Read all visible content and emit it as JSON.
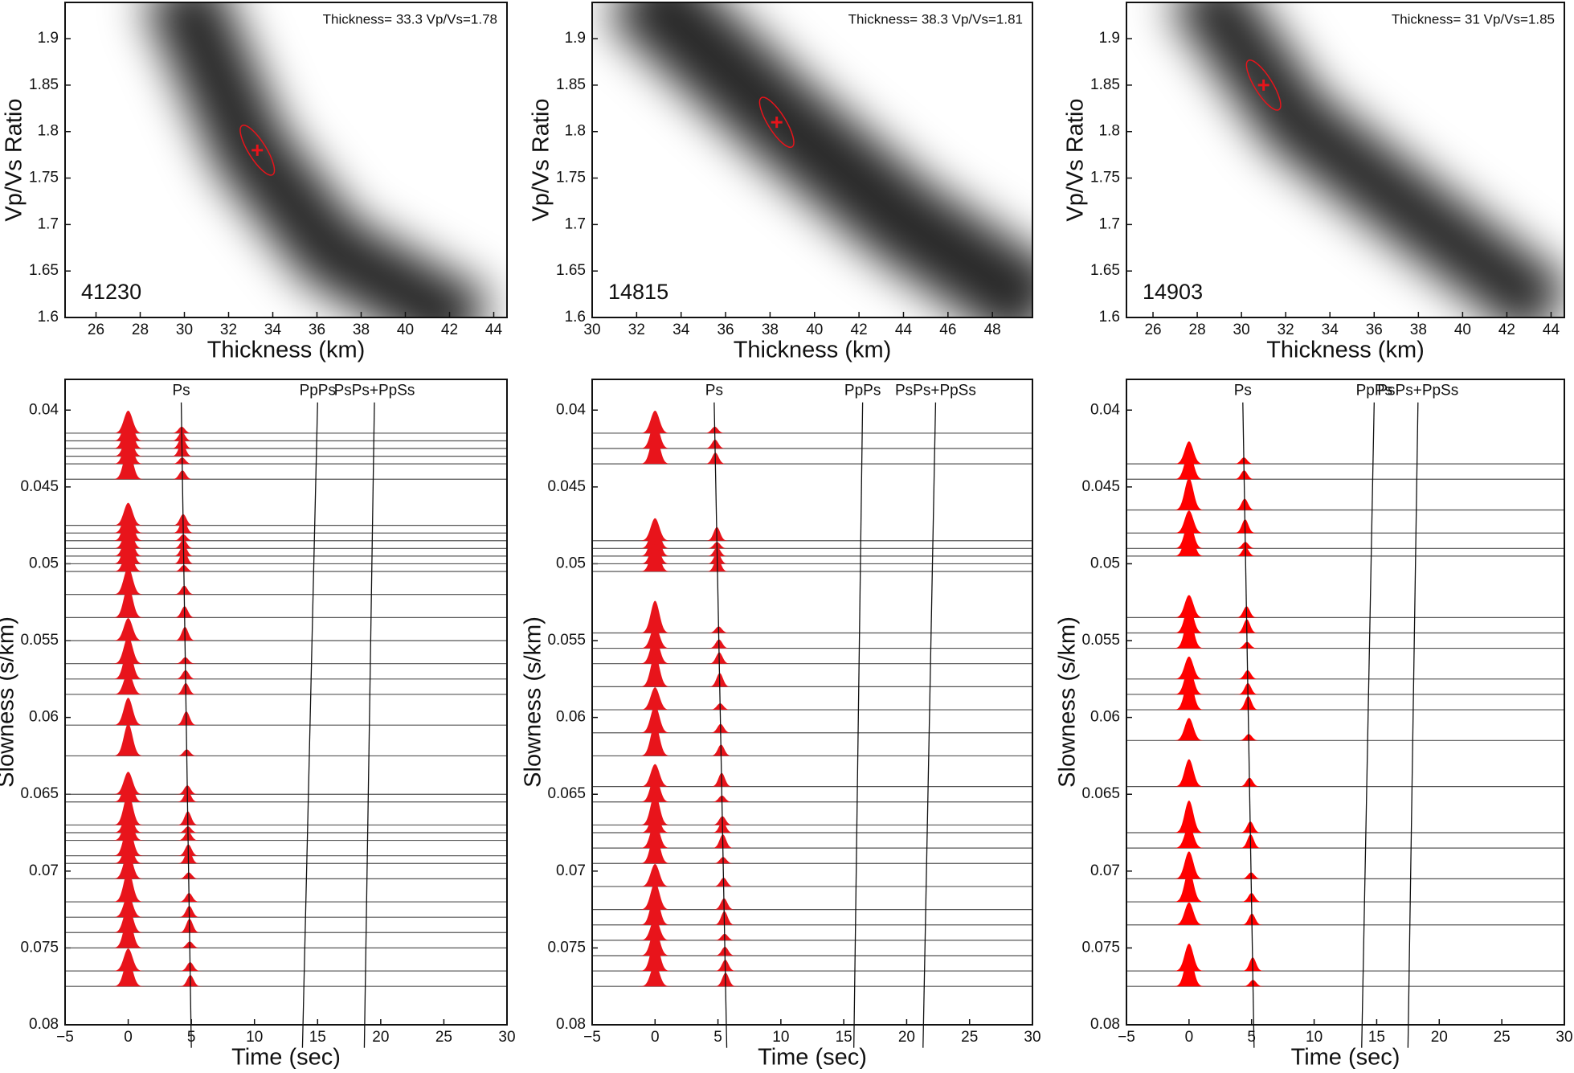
{
  "chart_data": [
    {
      "type": "scatter",
      "station": "41230",
      "annotation": "Thickness= 33.3  Vp/Vs=1.78",
      "xlabel": "Thickness (km)",
      "ylabel": "Vp/Vs Ratio",
      "x": [
        33.3
      ],
      "values": [
        1.78
      ],
      "color": "#e8141b",
      "xlim": [
        24.6,
        44.6
      ],
      "ylim": [
        1.6,
        1.939
      ],
      "xticks": [
        26,
        28,
        30,
        32,
        34,
        36,
        38,
        40,
        42,
        44
      ],
      "yticks": [
        1.6,
        1.65,
        1.7,
        1.75,
        1.8,
        1.85,
        1.9
      ]
    },
    {
      "type": "scatter",
      "station": "14815",
      "annotation": "Thickness= 38.3  Vp/Vs=1.81",
      "xlabel": "Thickness (km)",
      "ylabel": "Vp/Vs Ratio",
      "x": [
        38.3
      ],
      "values": [
        1.81
      ],
      "color": "#e8141b",
      "xlim": [
        30,
        49.8
      ],
      "ylim": [
        1.6,
        1.939
      ],
      "xticks": [
        30,
        32,
        34,
        36,
        38,
        40,
        42,
        44,
        46,
        48
      ],
      "yticks": [
        1.6,
        1.65,
        1.7,
        1.75,
        1.8,
        1.85,
        1.9
      ]
    },
    {
      "type": "scatter",
      "station": "14903",
      "annotation": "Thickness= 31  Vp/Vs=1.85",
      "xlabel": "Thickness (km)",
      "ylabel": "Vp/Vs Ratio",
      "x": [
        31
      ],
      "values": [
        1.85
      ],
      "color": "#e8141b",
      "xlim": [
        24.8,
        44.6
      ],
      "ylim": [
        1.6,
        1.939
      ],
      "xticks": [
        26,
        28,
        30,
        32,
        34,
        36,
        38,
        40,
        42,
        44
      ],
      "yticks": [
        1.6,
        1.65,
        1.7,
        1.75,
        1.8,
        1.85,
        1.9
      ]
    },
    {
      "type": "wiggle",
      "xlabel": "Time (sec)",
      "ylabel": "Slowness (s/km)",
      "color": "#e8141b",
      "xlim": [
        -5,
        30
      ],
      "ylim": [
        0.038,
        0.08
      ],
      "y_inverted": true,
      "xticks": [
        {
          "value": -5,
          "label": "−5"
        },
        0,
        5,
        10,
        15,
        20,
        25,
        30
      ],
      "yticks": [
        0.04,
        0.045,
        0.05,
        0.055,
        0.06,
        0.065,
        0.07,
        0.075,
        0.08
      ],
      "phases": [
        {
          "name": "Ps",
          "x": [
            4.2,
            5
          ],
          "y": [
            0.0395,
            0.0815
          ]
        },
        {
          "name": "PpPs",
          "x": [
            15,
            13.8
          ],
          "y": [
            0.0395,
            0.0815
          ]
        },
        {
          "name": "PsPs+PpSs",
          "x": [
            19.5,
            18.7
          ],
          "y": [
            0.0395,
            0.0815
          ]
        }
      ],
      "traces": [
        0.0415,
        0.042,
        0.0425,
        0.043,
        0.0435,
        0.0445,
        0.0475,
        0.048,
        0.0485,
        0.049,
        0.0495,
        0.05,
        0.0505,
        0.052,
        0.0535,
        0.055,
        0.0565,
        0.0575,
        0.0585,
        0.0605,
        0.0625,
        0.065,
        0.0655,
        0.067,
        0.0675,
        0.068,
        0.069,
        0.0695,
        0.0705,
        0.072,
        0.073,
        0.074,
        0.075,
        0.0765,
        0.0775
      ]
    },
    {
      "type": "wiggle",
      "xlabel": "Time (sec)",
      "ylabel": "Slowness (s/km)",
      "color": "#e8141b",
      "xlim": [
        -5,
        30
      ],
      "ylim": [
        0.038,
        0.08
      ],
      "y_inverted": true,
      "xticks": [
        {
          "value": -5,
          "label": "−5"
        },
        0,
        5,
        10,
        15,
        20,
        25,
        30
      ],
      "yticks": [
        0.04,
        0.045,
        0.05,
        0.055,
        0.06,
        0.065,
        0.07,
        0.075,
        0.08
      ],
      "phases": [
        {
          "name": "Ps",
          "x": [
            4.7,
            5.7
          ],
          "y": [
            0.0395,
            0.0815
          ]
        },
        {
          "name": "PpPs",
          "x": [
            16.5,
            15.8
          ],
          "y": [
            0.0395,
            0.0815
          ]
        },
        {
          "name": "PsPs+PpSs",
          "x": [
            22.3,
            21.3
          ],
          "y": [
            0.0395,
            0.0815
          ]
        }
      ],
      "traces": [
        0.0415,
        0.0425,
        0.0435,
        0.0485,
        0.049,
        0.0495,
        0.05,
        0.0505,
        0.0545,
        0.0555,
        0.0565,
        0.058,
        0.0595,
        0.061,
        0.0625,
        0.0645,
        0.0655,
        0.067,
        0.0675,
        0.0685,
        0.0695,
        0.071,
        0.0725,
        0.0735,
        0.0745,
        0.0755,
        0.0765,
        0.0775
      ]
    },
    {
      "type": "wiggle",
      "xlabel": "Time (sec)",
      "ylabel": "Slowness (s/km)",
      "color": "#ff0000",
      "xlim": [
        -5,
        30
      ],
      "ylim": [
        0.038,
        0.08
      ],
      "y_inverted": true,
      "xticks": [
        {
          "value": -5,
          "label": "−5"
        },
        0,
        5,
        10,
        15,
        20,
        25,
        30
      ],
      "yticks": [
        0.04,
        0.045,
        0.05,
        0.055,
        0.06,
        0.065,
        0.07,
        0.075,
        0.08
      ],
      "phases": [
        {
          "name": "Ps",
          "x": [
            4.3,
            5.2
          ],
          "y": [
            0.0395,
            0.0815
          ]
        },
        {
          "name": "PpPs",
          "x": [
            14.8,
            13.8
          ],
          "y": [
            0.0395,
            0.0815
          ]
        },
        {
          "name": "PsPs+PpSs",
          "x": [
            18.3,
            17.5
          ],
          "y": [
            0.0395,
            0.0815
          ]
        }
      ],
      "traces": [
        0.0435,
        0.0445,
        0.0465,
        0.048,
        0.049,
        0.0495,
        0.0535,
        0.0545,
        0.0555,
        0.0575,
        0.0585,
        0.0595,
        0.0615,
        0.0645,
        0.0675,
        0.0685,
        0.0705,
        0.072,
        0.0735,
        0.0765,
        0.0775
      ]
    }
  ]
}
